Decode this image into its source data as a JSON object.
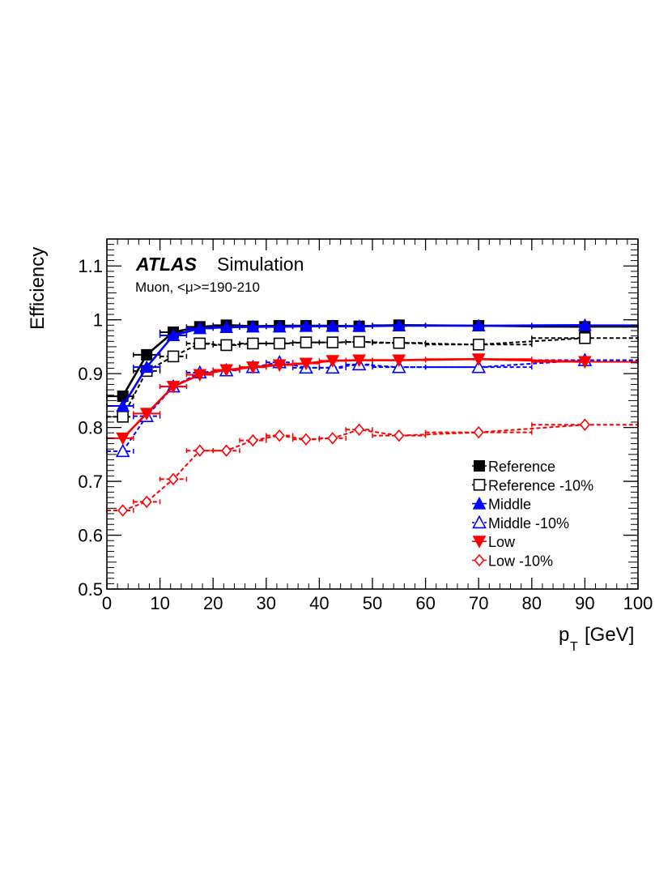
{
  "chart_data": {
    "type": "line",
    "title": "",
    "experiment": "ATLAS",
    "label": "Simulation",
    "subtitle": "Muon, <μ>=190-210",
    "xlabel": "p_T [GeV]",
    "xlabel_main": "p",
    "xlabel_sub": "T",
    "xlabel_unit": "[GeV]",
    "ylabel": "Efficiency",
    "xlim": [
      0,
      100
    ],
    "ylim": [
      0.5,
      1.15
    ],
    "xticks": [
      0,
      10,
      20,
      30,
      40,
      50,
      60,
      70,
      80,
      90,
      100
    ],
    "yticks": [
      0.5,
      0.6,
      0.7,
      0.8,
      0.9,
      1.0,
      1.1
    ],
    "ytick_labels": [
      "0.5",
      "0.6",
      "0.7",
      "0.8",
      "0.9",
      "1",
      "1.1"
    ],
    "legend_position": "bottom-right",
    "bin_edges": [
      0,
      5,
      10,
      15,
      20,
      25,
      30,
      35,
      40,
      45,
      50,
      60,
      80,
      100
    ],
    "series": [
      {
        "name": "Reference",
        "color": "#000000",
        "marker": "square-filled",
        "line": "solid",
        "x": [
          3,
          7.5,
          12.5,
          17.5,
          22.5,
          27.5,
          32.5,
          37.5,
          42.5,
          47.5,
          55,
          70,
          90
        ],
        "values": [
          0.858,
          0.935,
          0.977,
          0.987,
          0.99,
          0.988,
          0.989,
          0.989,
          0.989,
          0.988,
          0.99,
          0.989,
          0.987
        ]
      },
      {
        "name": "Reference -10%",
        "color": "#000000",
        "marker": "square-open",
        "line": "dashed",
        "x": [
          3,
          7.5,
          12.5,
          17.5,
          22.5,
          27.5,
          32.5,
          37.5,
          42.5,
          47.5,
          55,
          70,
          90
        ],
        "values": [
          0.82,
          0.905,
          0.932,
          0.956,
          0.953,
          0.956,
          0.956,
          0.958,
          0.958,
          0.959,
          0.957,
          0.954,
          0.966
        ]
      },
      {
        "name": "Middle",
        "color": "#0000ff",
        "marker": "triangle-up-filled",
        "line": "solid",
        "x": [
          3,
          7.5,
          12.5,
          17.5,
          22.5,
          27.5,
          32.5,
          37.5,
          42.5,
          47.5,
          55,
          70,
          90
        ],
        "values": [
          0.84,
          0.912,
          0.971,
          0.984,
          0.986,
          0.987,
          0.987,
          0.988,
          0.988,
          0.988,
          0.989,
          0.989,
          0.99
        ]
      },
      {
        "name": "Middle -10%",
        "color": "#0000ff",
        "marker": "triangle-up-open",
        "line": "dashed",
        "x": [
          3,
          7.5,
          12.5,
          17.5,
          22.5,
          27.5,
          32.5,
          37.5,
          42.5,
          47.5,
          55,
          70,
          90
        ],
        "values": [
          0.756,
          0.821,
          0.876,
          0.902,
          0.906,
          0.912,
          0.921,
          0.911,
          0.911,
          0.917,
          0.912,
          0.912,
          0.925
        ]
      },
      {
        "name": "Low",
        "color": "#ff0000",
        "marker": "triangle-down-filled",
        "line": "solid",
        "x": [
          3,
          7.5,
          12.5,
          17.5,
          22.5,
          27.5,
          32.5,
          37.5,
          42.5,
          47.5,
          55,
          70,
          90
        ],
        "values": [
          0.78,
          0.826,
          0.876,
          0.898,
          0.907,
          0.912,
          0.916,
          0.919,
          0.924,
          0.925,
          0.925,
          0.927,
          0.922
        ]
      },
      {
        "name": "Low -10%",
        "color": "#ff0000",
        "marker": "diamond-open",
        "line": "dashed",
        "x": [
          3,
          7.5,
          12.5,
          17.5,
          22.5,
          27.5,
          32.5,
          37.5,
          42.5,
          47.5,
          55,
          70,
          90
        ],
        "values": [
          0.646,
          0.662,
          0.704,
          0.757,
          0.757,
          0.776,
          0.785,
          0.778,
          0.78,
          0.796,
          0.785,
          0.791,
          0.805
        ]
      }
    ]
  }
}
